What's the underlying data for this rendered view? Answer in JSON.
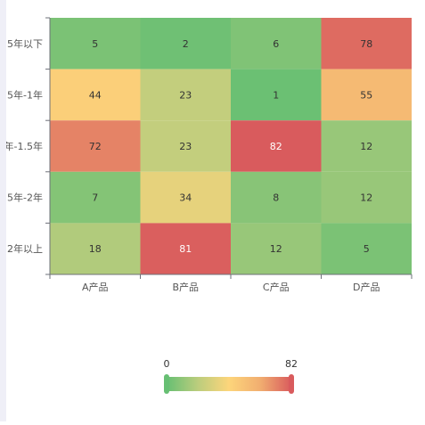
{
  "chart_data": {
    "type": "heatmap",
    "x_categories": [
      "A产品",
      "B产品",
      "C产品",
      "D产品"
    ],
    "y_categories": [
      "5年以下",
      "5年-1年",
      "年-1.5年",
      "5年-2年",
      "2年以上"
    ],
    "values": [
      [
        5,
        2,
        6,
        78
      ],
      [
        44,
        23,
        1,
        55
      ],
      [
        72,
        23,
        82,
        12
      ],
      [
        7,
        34,
        8,
        12
      ],
      [
        18,
        81,
        12,
        5
      ]
    ],
    "visual_map": {
      "min": 0,
      "max": 82,
      "min_label": "0",
      "max_label": "82"
    },
    "colors": [
      "#67bf73",
      "#bbcd7d",
      "#fdd57b",
      "#f1ae70",
      "#d95b5d"
    ]
  }
}
